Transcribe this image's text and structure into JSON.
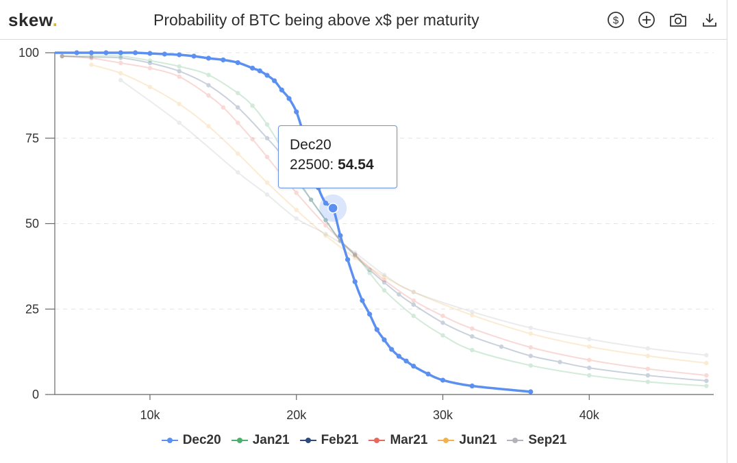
{
  "brand": {
    "name": "skew",
    "dot": "."
  },
  "header": {
    "title": "Probability of BTC being above x$ per maturity",
    "tools": [
      {
        "icon": "dollar-circle-icon"
      },
      {
        "icon": "plus-circle-icon"
      },
      {
        "icon": "camera-icon"
      },
      {
        "icon": "download-icon"
      }
    ]
  },
  "tooltip": {
    "series": "Dec20",
    "x_label": "22500",
    "separator": ": ",
    "value": "54.54"
  },
  "chart_data": {
    "type": "line",
    "title": "Probability of BTC being above x$ per maturity",
    "xlabel": "",
    "ylabel": "",
    "xlim": [
      3500,
      48500
    ],
    "ylim": [
      0,
      100
    ],
    "x_ticks": [
      10000,
      20000,
      30000,
      40000
    ],
    "x_tick_labels": [
      "10k",
      "20k",
      "30k",
      "40k"
    ],
    "y_ticks": [
      0,
      25,
      50,
      75,
      100
    ],
    "y_tick_labels": [
      "0",
      "25",
      "50",
      "75",
      "100"
    ],
    "grid": "horizontal dashed",
    "legend_position": "bottom",
    "highlighted_series": "Dec20",
    "highlighted_point": {
      "x": 22500,
      "y": 54.54
    },
    "series": [
      {
        "name": "Dec20",
        "color": "#5b8ff0",
        "line_x": [
          3500,
          4000
        ],
        "line_y": [
          100,
          100
        ],
        "x": [
          5000,
          6000,
          7000,
          8000,
          9000,
          10000,
          11000,
          12000,
          13000,
          14000,
          15000,
          16000,
          17000,
          17500,
          18000,
          18500,
          19000,
          19500,
          20000,
          20500,
          21000,
          21500,
          22000,
          22500,
          23000,
          23500,
          24000,
          24500,
          25000,
          25500,
          26000,
          26500,
          27000,
          27500,
          28000,
          29000,
          30000,
          32000,
          36000
        ],
        "y": [
          100,
          100,
          100,
          100,
          100,
          99.8,
          99.6,
          99.4,
          99,
          98.4,
          97.9,
          97.1,
          95.5,
          94.7,
          93.4,
          91.8,
          89.1,
          86.6,
          82.7,
          76,
          68,
          60.5,
          56,
          54.54,
          46.5,
          39.5,
          33,
          27.5,
          23.5,
          19,
          16,
          13.2,
          11.2,
          9.8,
          8.3,
          6,
          4.2,
          2.5,
          0.8
        ]
      },
      {
        "name": "Jan21",
        "color": "#4caf6a",
        "x": [
          4000,
          6000,
          8000,
          10000,
          12000,
          14000,
          16000,
          17000,
          18000,
          19000,
          20000,
          21000,
          22000,
          23000,
          24000,
          25000,
          26000,
          28000,
          30000,
          32000,
          36000,
          40000,
          44000,
          48000
        ],
        "y": [
          99,
          99,
          99,
          97.7,
          96,
          93.5,
          88.2,
          84.5,
          79,
          72,
          64,
          57,
          51,
          45,
          41,
          35.6,
          30.5,
          23,
          17.3,
          13,
          8.5,
          5.6,
          3.7,
          2.5
        ]
      },
      {
        "name": "Feb21",
        "color": "#2e4a7a",
        "x": [
          4000,
          6000,
          8000,
          10000,
          12000,
          14000,
          16000,
          18000,
          19000,
          20000,
          21000,
          22000,
          23000,
          24000,
          25000,
          26000,
          27000,
          28000,
          30000,
          32000,
          34000,
          36000,
          38000,
          40000,
          44000,
          48000
        ],
        "y": [
          99,
          98.7,
          98.5,
          97,
          94.6,
          90.5,
          84,
          75,
          70,
          63,
          57,
          51,
          45,
          40.7,
          36.5,
          32.8,
          29.3,
          26.3,
          21,
          17,
          14,
          11.3,
          9.5,
          7.8,
          5.6,
          4
        ]
      },
      {
        "name": "Mar21",
        "color": "#e8685e",
        "x": [
          4000,
          6000,
          8000,
          10000,
          12000,
          14000,
          15000,
          16000,
          17000,
          18000,
          20000,
          22000,
          24000,
          26000,
          28000,
          30000,
          32000,
          36000,
          40000,
          44000,
          48000
        ],
        "y": [
          99,
          98.4,
          97,
          95.5,
          93,
          87.5,
          84,
          79.5,
          74.7,
          69.5,
          59,
          49.5,
          41,
          33.5,
          27.5,
          23,
          19.3,
          13.8,
          10.1,
          7.5,
          5.6
        ]
      },
      {
        "name": "Jun21",
        "color": "#f0b24e",
        "x": [
          6000,
          8000,
          10000,
          12000,
          14000,
          16000,
          18000,
          20000,
          22000,
          24000,
          26000,
          28000,
          32000,
          36000,
          40000,
          44000,
          48000
        ],
        "y": [
          96.5,
          94,
          90,
          85,
          78.5,
          70.5,
          62,
          54,
          46.5,
          40,
          34.5,
          30,
          23.2,
          17.8,
          14,
          11.3,
          9.2
        ]
      },
      {
        "name": "Sep21",
        "color": "#b0b3b8",
        "x": [
          8000,
          12000,
          16000,
          18000,
          20000,
          22000,
          24000,
          26000,
          28000,
          32000,
          36000,
          40000,
          44000,
          48000
        ],
        "y": [
          92,
          79.5,
          65,
          58.5,
          51.5,
          47,
          41.5,
          35,
          30,
          24.2,
          19.5,
          16.2,
          13.5,
          11.5
        ]
      }
    ]
  }
}
